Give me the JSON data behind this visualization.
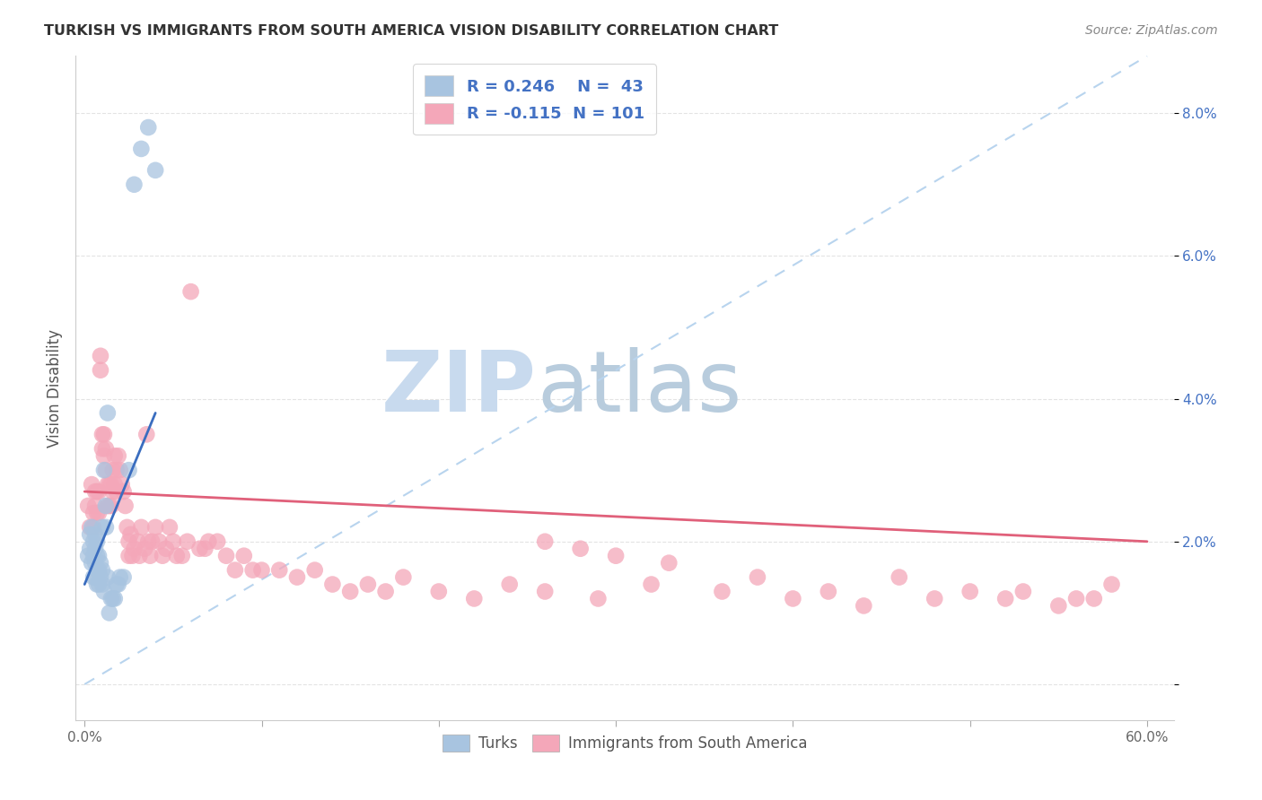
{
  "title": "TURKISH VS IMMIGRANTS FROM SOUTH AMERICA VISION DISABILITY CORRELATION CHART",
  "source": "Source: ZipAtlas.com",
  "ylabel": "Vision Disability",
  "xlim": [
    -0.005,
    0.615
  ],
  "ylim": [
    -0.005,
    0.088
  ],
  "xtick_positions": [
    0.0,
    0.1,
    0.2,
    0.3,
    0.4,
    0.5,
    0.6
  ],
  "xtick_labels_show": [
    "0.0%",
    "",
    "",
    "",
    "",
    "",
    "60.0%"
  ],
  "yticks": [
    0.0,
    0.02,
    0.04,
    0.06,
    0.08
  ],
  "ytick_labels": [
    "",
    "2.0%",
    "4.0%",
    "6.0%",
    "8.0%"
  ],
  "turks_R": 0.246,
  "turks_N": 43,
  "south_america_R": -0.115,
  "south_america_N": 101,
  "turks_color": "#a8c4e0",
  "south_america_color": "#f4a7b9",
  "turks_line_color": "#3a6dbf",
  "south_america_line_color": "#e0607a",
  "ref_line_color": "#b8d4ee",
  "watermark_color_zip": "#c8daee",
  "watermark_color_atlas": "#b8ccdd",
  "legend_text_color": "#4472c4",
  "turks_x": [
    0.002,
    0.003,
    0.003,
    0.004,
    0.004,
    0.005,
    0.005,
    0.005,
    0.006,
    0.006,
    0.006,
    0.006,
    0.007,
    0.007,
    0.007,
    0.007,
    0.008,
    0.008,
    0.008,
    0.009,
    0.009,
    0.01,
    0.01,
    0.01,
    0.011,
    0.011,
    0.012,
    0.012,
    0.013,
    0.013,
    0.014,
    0.015,
    0.016,
    0.017,
    0.018,
    0.019,
    0.02,
    0.022,
    0.025,
    0.028,
    0.032,
    0.036,
    0.04
  ],
  "turks_y": [
    0.018,
    0.019,
    0.021,
    0.017,
    0.022,
    0.015,
    0.018,
    0.02,
    0.015,
    0.017,
    0.019,
    0.021,
    0.014,
    0.016,
    0.018,
    0.02,
    0.014,
    0.016,
    0.018,
    0.015,
    0.017,
    0.014,
    0.016,
    0.022,
    0.013,
    0.03,
    0.022,
    0.025,
    0.015,
    0.038,
    0.01,
    0.012,
    0.012,
    0.012,
    0.014,
    0.014,
    0.015,
    0.015,
    0.03,
    0.07,
    0.075,
    0.078,
    0.072
  ],
  "sa_x": [
    0.002,
    0.003,
    0.004,
    0.005,
    0.005,
    0.006,
    0.006,
    0.007,
    0.007,
    0.008,
    0.008,
    0.009,
    0.009,
    0.01,
    0.01,
    0.011,
    0.011,
    0.012,
    0.012,
    0.013,
    0.013,
    0.014,
    0.014,
    0.015,
    0.015,
    0.016,
    0.016,
    0.017,
    0.017,
    0.018,
    0.018,
    0.019,
    0.02,
    0.021,
    0.022,
    0.023,
    0.024,
    0.025,
    0.025,
    0.026,
    0.027,
    0.028,
    0.03,
    0.031,
    0.032,
    0.034,
    0.035,
    0.036,
    0.037,
    0.038,
    0.04,
    0.042,
    0.044,
    0.046,
    0.048,
    0.05,
    0.052,
    0.055,
    0.058,
    0.06,
    0.065,
    0.068,
    0.07,
    0.075,
    0.08,
    0.085,
    0.09,
    0.095,
    0.1,
    0.11,
    0.12,
    0.13,
    0.14,
    0.15,
    0.16,
    0.17,
    0.18,
    0.2,
    0.22,
    0.24,
    0.26,
    0.29,
    0.32,
    0.36,
    0.4,
    0.44,
    0.48,
    0.52,
    0.55,
    0.57,
    0.26,
    0.28,
    0.3,
    0.33,
    0.38,
    0.42,
    0.46,
    0.5,
    0.53,
    0.56,
    0.58
  ],
  "sa_y": [
    0.025,
    0.022,
    0.028,
    0.024,
    0.022,
    0.027,
    0.025,
    0.027,
    0.024,
    0.027,
    0.024,
    0.046,
    0.044,
    0.035,
    0.033,
    0.035,
    0.032,
    0.033,
    0.03,
    0.028,
    0.025,
    0.028,
    0.025,
    0.028,
    0.025,
    0.03,
    0.027,
    0.032,
    0.028,
    0.03,
    0.027,
    0.032,
    0.03,
    0.028,
    0.027,
    0.025,
    0.022,
    0.02,
    0.018,
    0.021,
    0.018,
    0.019,
    0.02,
    0.018,
    0.022,
    0.019,
    0.035,
    0.02,
    0.018,
    0.02,
    0.022,
    0.02,
    0.018,
    0.019,
    0.022,
    0.02,
    0.018,
    0.018,
    0.02,
    0.055,
    0.019,
    0.019,
    0.02,
    0.02,
    0.018,
    0.016,
    0.018,
    0.016,
    0.016,
    0.016,
    0.015,
    0.016,
    0.014,
    0.013,
    0.014,
    0.013,
    0.015,
    0.013,
    0.012,
    0.014,
    0.013,
    0.012,
    0.014,
    0.013,
    0.012,
    0.011,
    0.012,
    0.012,
    0.011,
    0.012,
    0.02,
    0.019,
    0.018,
    0.017,
    0.015,
    0.013,
    0.015,
    0.013,
    0.013,
    0.012,
    0.014
  ],
  "blue_line_x": [
    0.0,
    0.04
  ],
  "blue_line_y": [
    0.014,
    0.038
  ],
  "pink_line_x": [
    0.0,
    0.6
  ],
  "pink_line_y": [
    0.027,
    0.02
  ]
}
